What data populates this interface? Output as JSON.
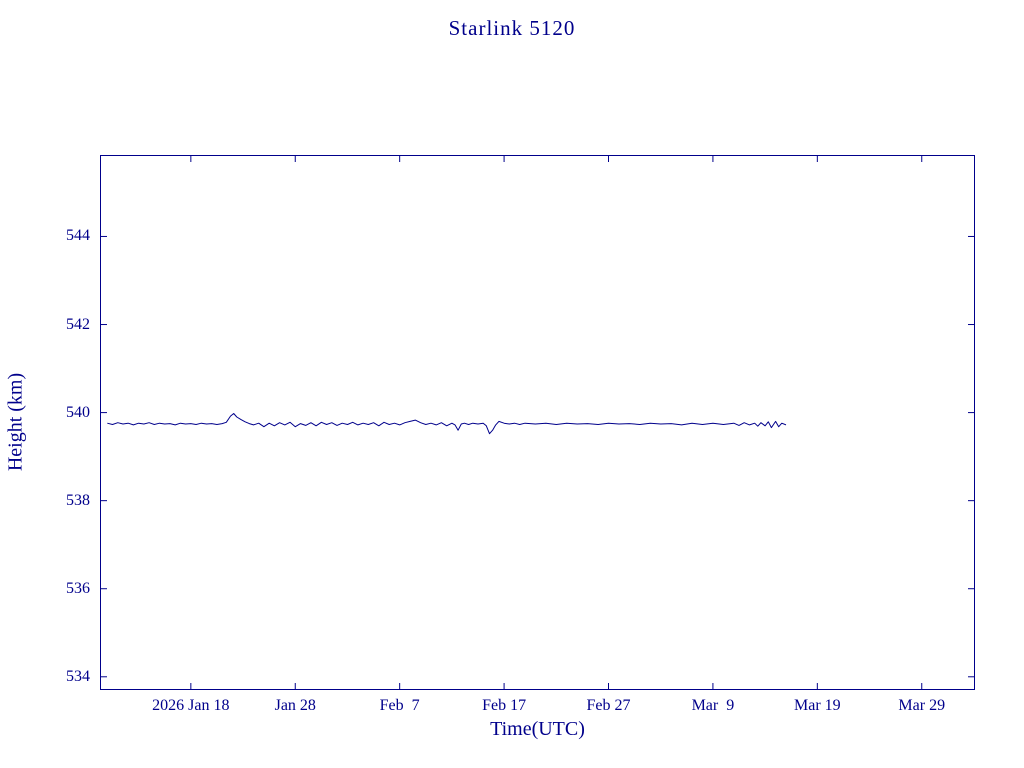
{
  "page": {
    "title": "Starlink 5120"
  },
  "chart_data": {
    "type": "line",
    "title": "Starlink 5120",
    "xlabel": "Time(UTC)",
    "ylabel": "Height (km)",
    "line_color": "#00008b",
    "axis_color": "#00008b",
    "background": "#ffffff",
    "legend": "none",
    "grid": false,
    "x_unit": "day of year 2026",
    "xlim_days": [
      9.3,
      93.1
    ],
    "ylim": [
      533.7,
      545.85
    ],
    "y_ticks": [
      534,
      536,
      538,
      540,
      542,
      544
    ],
    "x_ticks": [
      {
        "day": 18,
        "label": "2026 Jan 18"
      },
      {
        "day": 28,
        "label": "Jan 28"
      },
      {
        "day": 38,
        "label": "Feb  7"
      },
      {
        "day": 48,
        "label": "Feb 17"
      },
      {
        "day": 58,
        "label": "Feb 27"
      },
      {
        "day": 68,
        "label": "Mar  9"
      },
      {
        "day": 78,
        "label": "Mar 19"
      },
      {
        "day": 88,
        "label": "Mar 29"
      }
    ],
    "series": [
      {
        "name": "height_km",
        "x_days": [
          10,
          10.5,
          11,
          11.5,
          12,
          12.5,
          13,
          13.5,
          14,
          14.5,
          15,
          15.5,
          16,
          16.5,
          17,
          17.5,
          18,
          18.5,
          19,
          19.5,
          20,
          20.5,
          21,
          21.4,
          21.8,
          22.1,
          22.4,
          22.8,
          23.2,
          23.6,
          24,
          24.5,
          25,
          25.5,
          26,
          26.5,
          27,
          27.5,
          28,
          28.5,
          29,
          29.5,
          30,
          30.5,
          31,
          31.5,
          32,
          32.5,
          33,
          33.5,
          34,
          34.5,
          35,
          35.5,
          36,
          36.5,
          37,
          37.5,
          38,
          38.5,
          39,
          39.5,
          40,
          40.5,
          41,
          41.5,
          42,
          42.5,
          43,
          43.3,
          43.6,
          43.9,
          44.2,
          44.6,
          45,
          45.5,
          46,
          46.3,
          46.6,
          46.9,
          47.2,
          47.5,
          48,
          48.5,
          49,
          49.5,
          50,
          51,
          52,
          53,
          54,
          55,
          56,
          57,
          58,
          59,
          60,
          61,
          62,
          63,
          64,
          65,
          66,
          67,
          68,
          69,
          70,
          70.5,
          71,
          71.5,
          72,
          72.3,
          72.6,
          73,
          73.3,
          73.6,
          74,
          74.3,
          74.6,
          75
        ],
        "y": [
          539.76,
          539.73,
          539.77,
          539.74,
          539.76,
          539.72,
          539.76,
          539.74,
          539.77,
          539.73,
          539.76,
          539.74,
          539.75,
          539.72,
          539.76,
          539.74,
          539.75,
          539.73,
          539.76,
          539.74,
          539.75,
          539.73,
          539.75,
          539.78,
          539.92,
          539.98,
          539.9,
          539.84,
          539.79,
          539.75,
          539.72,
          539.76,
          539.68,
          539.76,
          539.7,
          539.77,
          539.72,
          539.78,
          539.68,
          539.75,
          539.71,
          539.77,
          539.7,
          539.78,
          539.73,
          539.77,
          539.71,
          539.76,
          539.73,
          539.78,
          539.72,
          539.76,
          539.73,
          539.77,
          539.7,
          539.78,
          539.73,
          539.76,
          539.72,
          539.77,
          539.8,
          539.83,
          539.77,
          539.73,
          539.76,
          539.72,
          539.77,
          539.7,
          539.76,
          539.72,
          539.6,
          539.74,
          539.76,
          539.73,
          539.76,
          539.74,
          539.76,
          539.7,
          539.52,
          539.6,
          539.72,
          539.8,
          539.76,
          539.74,
          539.76,
          539.73,
          539.76,
          539.74,
          539.76,
          539.73,
          539.76,
          539.74,
          539.75,
          539.73,
          539.76,
          539.74,
          539.75,
          539.73,
          539.76,
          539.74,
          539.75,
          539.72,
          539.76,
          539.73,
          539.76,
          539.73,
          539.76,
          539.71,
          539.77,
          539.72,
          539.76,
          539.69,
          539.77,
          539.7,
          539.79,
          539.66,
          539.8,
          539.68,
          539.76,
          539.72
        ]
      }
    ]
  }
}
